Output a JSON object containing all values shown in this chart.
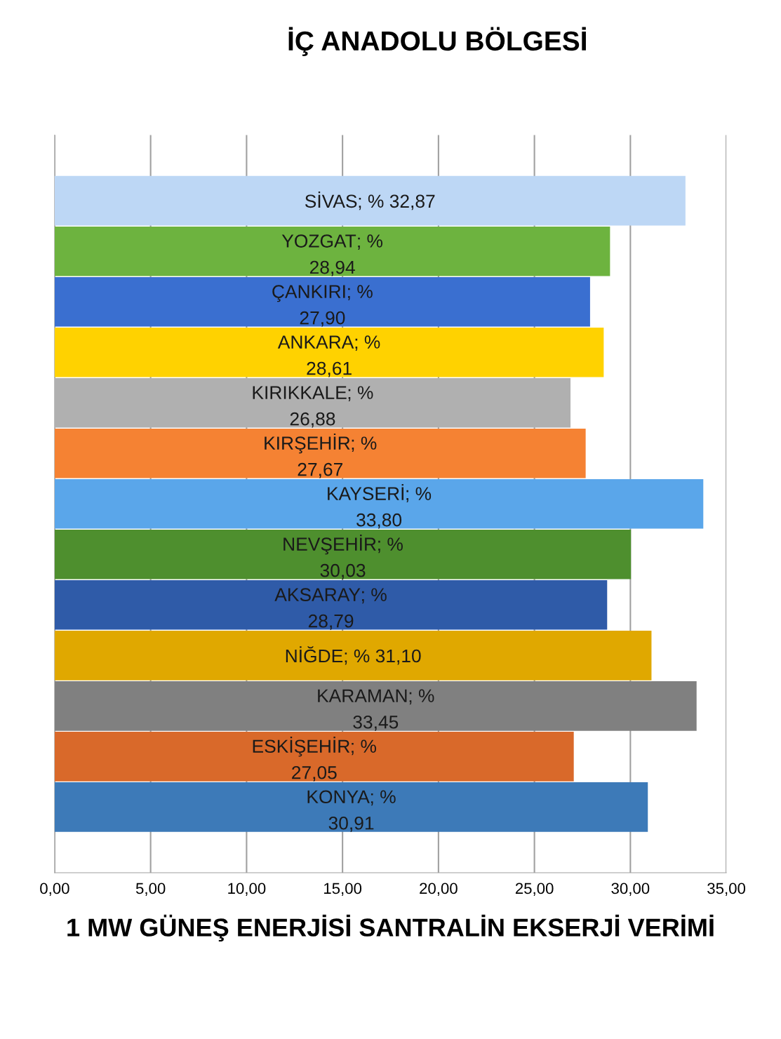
{
  "chart_data": {
    "type": "bar",
    "orientation": "horizontal",
    "title": "İÇ ANADOLU BÖLGESİ",
    "xlabel": "1 MW GÜNEŞ ENERJİSİ SANTRALİN EKSERJİ VERİMİ",
    "categories": [
      "SİVAS",
      "YOZGAT",
      "ÇANKIRI",
      "ANKARA",
      "KIRIKKALE",
      "KIRŞEHİR",
      "KAYSERİ",
      "NEVŞEHİR",
      "AKSARAY",
      "NİĞDE",
      "KARAMAN",
      "ESKİŞEHİR",
      "KONYA"
    ],
    "values": [
      32.87,
      28.94,
      27.9,
      28.61,
      26.88,
      27.67,
      33.8,
      30.03,
      28.79,
      31.1,
      33.45,
      27.05,
      30.91
    ],
    "colors": [
      "#bdd7f5",
      "#6db33f",
      "#3a6fd0",
      "#ffd200",
      "#b0b0b0",
      "#f58233",
      "#5aa6ea",
      "#4e8f2e",
      "#2f5ba8",
      "#e0a800",
      "#808080",
      "#d9692a",
      "#3d7ab8"
    ],
    "value_labels": [
      "; % 32,87",
      "; %\n28,94",
      "; %\n27,90",
      "; %\n28,61",
      "; %\n26,88",
      "; %\n27,67",
      "; %\n33,80",
      "; %\n30,03",
      "; %\n28,79",
      "; % 31,10",
      "; %\n33,45",
      "; %\n27,05",
      "; %\n30,91"
    ],
    "xlim": [
      0,
      35
    ],
    "xticks": [
      {
        "value": 0,
        "label": "0,00"
      },
      {
        "value": 5,
        "label": "5,00"
      },
      {
        "value": 10,
        "label": "10,00"
      },
      {
        "value": 15,
        "label": "15,00"
      },
      {
        "value": 20,
        "label": "20,00"
      },
      {
        "value": 25,
        "label": "25,00"
      },
      {
        "value": 30,
        "label": "30,00"
      },
      {
        "value": 35,
        "label": "35,00"
      }
    ],
    "grid": "x",
    "tick_labels": "x"
  }
}
